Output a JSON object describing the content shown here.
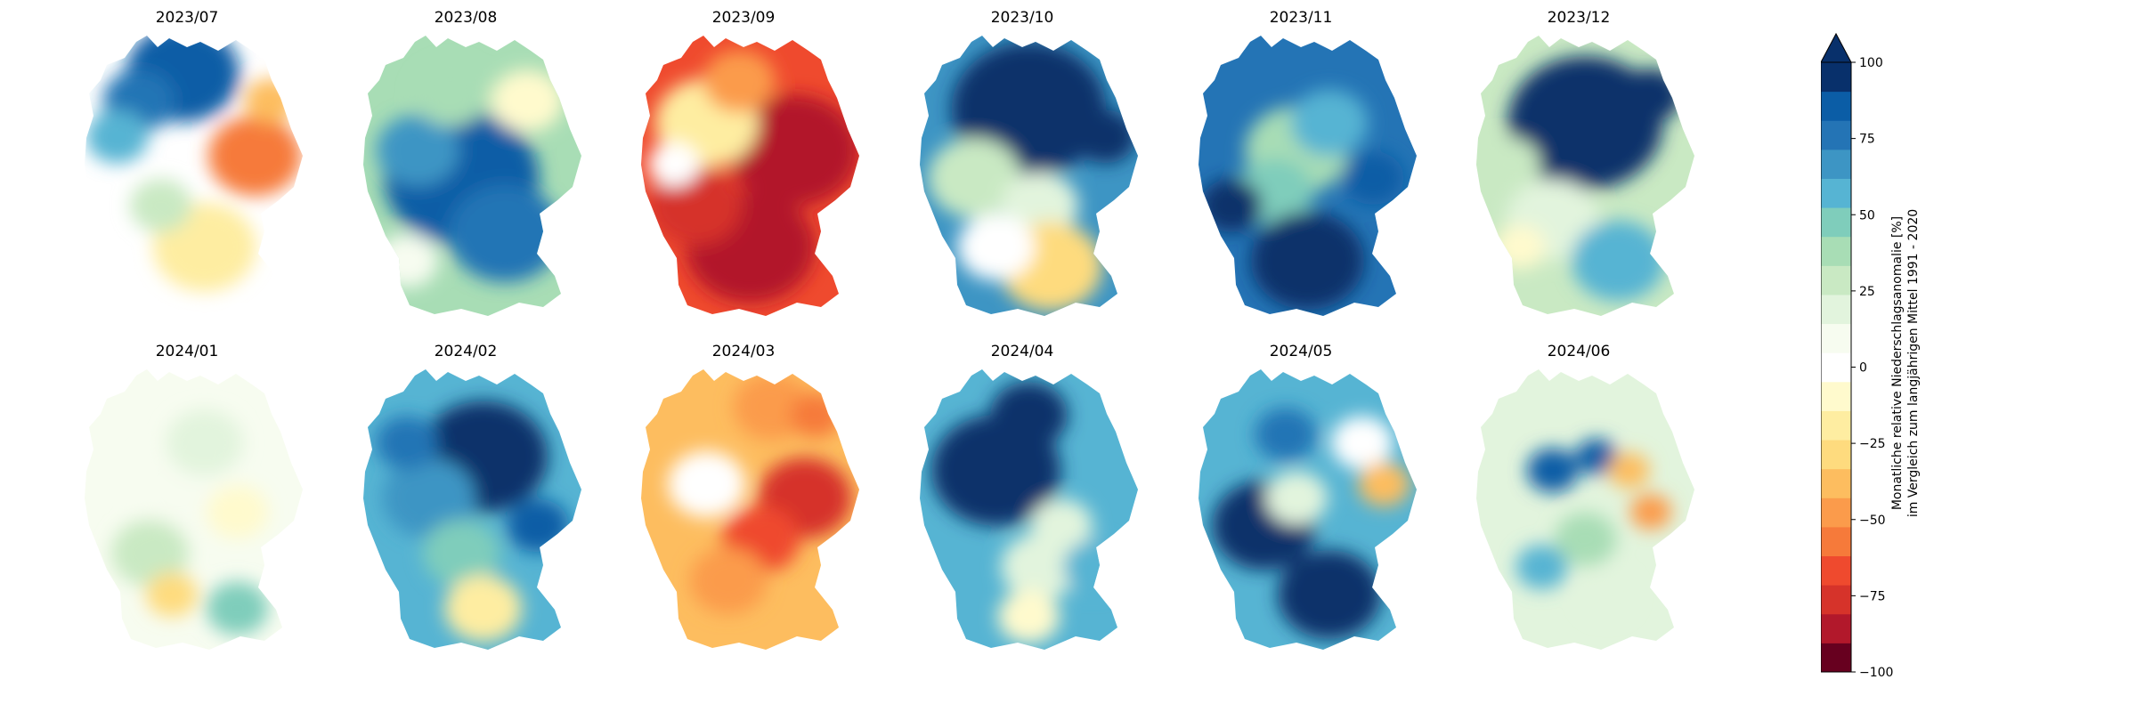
{
  "panels": [
    {
      "title": "2023/07",
      "mean": 0.05,
      "spots": [
        [
          0.45,
          0.12,
          0.22,
          95
        ],
        [
          0.25,
          0.22,
          0.14,
          80
        ],
        [
          0.15,
          0.35,
          0.12,
          60
        ],
        [
          0.78,
          0.42,
          0.18,
          -55
        ],
        [
          0.85,
          0.22,
          0.1,
          -40
        ],
        [
          0.55,
          0.75,
          0.2,
          -20
        ],
        [
          0.35,
          0.6,
          0.12,
          30
        ]
      ]
    },
    {
      "title": "2023/08",
      "mean": 45,
      "spots": [
        [
          0.45,
          0.5,
          0.3,
          95
        ],
        [
          0.65,
          0.7,
          0.22,
          85
        ],
        [
          0.25,
          0.4,
          0.16,
          70
        ],
        [
          0.75,
          0.22,
          0.14,
          -10
        ],
        [
          0.4,
          0.2,
          0.14,
          40
        ],
        [
          0.2,
          0.8,
          0.12,
          10
        ]
      ]
    },
    {
      "title": "2023/09",
      "mean": -62,
      "spots": [
        [
          0.7,
          0.4,
          0.25,
          -90
        ],
        [
          0.5,
          0.75,
          0.25,
          -85
        ],
        [
          0.25,
          0.6,
          0.18,
          -75
        ],
        [
          0.3,
          0.3,
          0.2,
          -20
        ],
        [
          0.15,
          0.45,
          0.1,
          0
        ],
        [
          0.45,
          0.15,
          0.14,
          -45
        ]
      ]
    },
    {
      "title": "2023/10",
      "mean": 70,
      "spots": [
        [
          0.5,
          0.25,
          0.3,
          100
        ],
        [
          0.25,
          0.5,
          0.18,
          30
        ],
        [
          0.55,
          0.6,
          0.15,
          20
        ],
        [
          0.6,
          0.82,
          0.2,
          -30
        ],
        [
          0.35,
          0.75,
          0.15,
          5
        ],
        [
          0.85,
          0.35,
          0.12,
          100
        ]
      ]
    },
    {
      "title": "2023/11",
      "mean": 85,
      "spots": [
        [
          0.45,
          0.4,
          0.2,
          40
        ],
        [
          0.6,
          0.3,
          0.15,
          60
        ],
        [
          0.35,
          0.55,
          0.15,
          50
        ],
        [
          0.5,
          0.8,
          0.22,
          100
        ],
        [
          0.15,
          0.6,
          0.12,
          100
        ],
        [
          0.8,
          0.5,
          0.12,
          90
        ]
      ]
    },
    {
      "title": "2023/12",
      "mean": 35,
      "spots": [
        [
          0.5,
          0.3,
          0.3,
          100
        ],
        [
          0.8,
          0.2,
          0.12,
          100
        ],
        [
          0.35,
          0.65,
          0.18,
          25
        ],
        [
          0.65,
          0.8,
          0.18,
          60
        ],
        [
          0.2,
          0.75,
          0.1,
          -10
        ],
        [
          0.15,
          0.45,
          0.12,
          30
        ]
      ]
    },
    {
      "title": "2024/01",
      "mean": 18,
      "spots": [
        [
          0.45,
          0.4,
          0.2,
          10
        ],
        [
          0.3,
          0.65,
          0.15,
          30
        ],
        [
          0.7,
          0.5,
          0.12,
          -5
        ],
        [
          0.4,
          0.8,
          0.1,
          -30
        ],
        [
          0.55,
          0.25,
          0.15,
          20
        ],
        [
          0.7,
          0.85,
          0.12,
          50
        ]
      ]
    },
    {
      "title": "2024/02",
      "mean": 60,
      "spots": [
        [
          0.55,
          0.3,
          0.25,
          100
        ],
        [
          0.3,
          0.45,
          0.18,
          70
        ],
        [
          0.45,
          0.65,
          0.15,
          50
        ],
        [
          0.55,
          0.85,
          0.15,
          -20
        ],
        [
          0.2,
          0.25,
          0.12,
          80
        ],
        [
          0.8,
          0.55,
          0.12,
          95
        ]
      ]
    },
    {
      "title": "2024/03",
      "mean": -32,
      "spots": [
        [
          0.75,
          0.45,
          0.18,
          -75
        ],
        [
          0.55,
          0.6,
          0.15,
          -70
        ],
        [
          0.4,
          0.75,
          0.15,
          -50
        ],
        [
          0.3,
          0.4,
          0.15,
          5
        ],
        [
          0.6,
          0.12,
          0.15,
          -50
        ],
        [
          0.8,
          0.15,
          0.1,
          -60
        ]
      ]
    },
    {
      "title": "2024/04",
      "mean": 62,
      "spots": [
        [
          0.35,
          0.35,
          0.25,
          100
        ],
        [
          0.5,
          0.15,
          0.15,
          100
        ],
        [
          0.65,
          0.55,
          0.12,
          20
        ],
        [
          0.55,
          0.7,
          0.15,
          25
        ],
        [
          0.5,
          0.88,
          0.12,
          -10
        ],
        [
          0.8,
          0.7,
          0.12,
          60
        ]
      ]
    },
    {
      "title": "2024/05",
      "mean": 60,
      "spots": [
        [
          0.3,
          0.55,
          0.2,
          100
        ],
        [
          0.6,
          0.8,
          0.2,
          100
        ],
        [
          0.45,
          0.45,
          0.12,
          25
        ],
        [
          0.75,
          0.25,
          0.12,
          5
        ],
        [
          0.85,
          0.4,
          0.1,
          -40
        ],
        [
          0.4,
          0.22,
          0.12,
          80
        ]
      ]
    },
    {
      "title": "2024/06",
      "mean": 25,
      "spots": [
        [
          0.35,
          0.35,
          0.1,
          95
        ],
        [
          0.55,
          0.3,
          0.08,
          90
        ],
        [
          0.7,
          0.35,
          0.08,
          -40
        ],
        [
          0.8,
          0.5,
          0.08,
          -45
        ],
        [
          0.5,
          0.6,
          0.12,
          40
        ],
        [
          0.3,
          0.7,
          0.1,
          60
        ],
        [
          0.6,
          0.8,
          0.1,
          20
        ]
      ]
    }
  ],
  "colorbar": {
    "levels": [
      -100,
      -90,
      -80,
      -70,
      -60,
      -50,
      -40,
      -30,
      -20,
      -10,
      0,
      10,
      20,
      30,
      40,
      50,
      60,
      70,
      80,
      90,
      100
    ],
    "colors": [
      "#67001f",
      "#b2182b",
      "#d6332a",
      "#ef4a2e",
      "#f67a3a",
      "#fb9b4b",
      "#fdbd5f",
      "#fedb7e",
      "#feeda1",
      "#fffacd",
      "#ffffff",
      "#f7fcf0",
      "#e2f4dd",
      "#c9e9c3",
      "#a8ddb5",
      "#7fcdbb",
      "#56b4d3",
      "#3d95c4",
      "#2474b5",
      "#0b5da6",
      "#08306b"
    ],
    "extend_color": "#08306b",
    "ticks": [
      "100",
      "75",
      "50",
      "25",
      "0",
      "−25",
      "−50",
      "−75",
      "−100"
    ],
    "label_line1": "Monatliche relative Niederschlagsanomalie [%]",
    "label_line2": "im Vergleich zum langjährigen Mittel 1991 - 2020"
  }
}
